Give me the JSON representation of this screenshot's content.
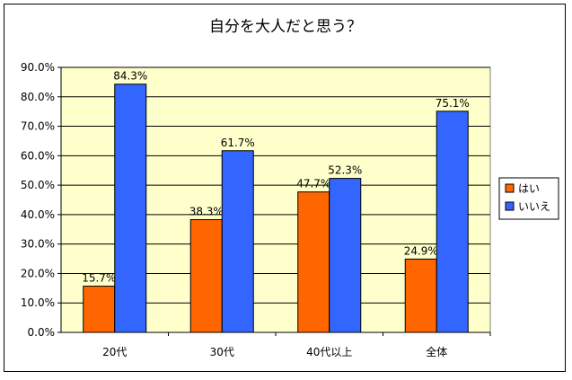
{
  "chart_data": {
    "type": "bar",
    "title": "自分を大人だと思う？",
    "categories": [
      "20代",
      "30代",
      "40代以上",
      "全体"
    ],
    "series": [
      {
        "name": "はい",
        "values": [
          15.7,
          38.3,
          47.7,
          24.9
        ],
        "color": "#ff6600"
      },
      {
        "name": "いいえ",
        "values": [
          84.3,
          61.7,
          52.3,
          75.1
        ],
        "color": "#3366ff"
      }
    ],
    "data_labels": {
      "はい": [
        "15.7%",
        "38.3%",
        "47.7%",
        "24.9%"
      ],
      "いいえ": [
        "84.3%",
        "61.7%",
        "52.3%",
        "75.1%"
      ]
    },
    "y_ticks": [
      "0.0%",
      "10.0%",
      "20.0%",
      "30.0%",
      "40.0%",
      "50.0%",
      "60.0%",
      "70.0%",
      "80.0%",
      "90.0%"
    ],
    "ylim": [
      0,
      90
    ],
    "grid": true,
    "legend_position": "right",
    "plot_background": "#ffffcc"
  }
}
